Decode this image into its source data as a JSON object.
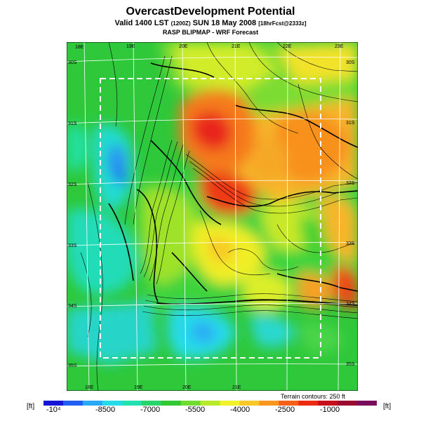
{
  "header": {
    "title": "OvercastDevelopment Potential",
    "subtitle_main": "Valid 1400 LST",
    "subtitle_utc": "(1200Z)",
    "subtitle_date": "SUN 18 May 2008",
    "subtitle_fcst": "[18hrFcst@2333z]",
    "subtitle2": "RASP BLIPMAP - WRF Forecast"
  },
  "map": {
    "lon_top": [
      "18E",
      "19E",
      "20E",
      "21E",
      "22E",
      "23E"
    ],
    "lon_bottom": [
      "18E",
      "19E",
      "20E",
      "21E"
    ],
    "lat_left": [
      "30S",
      "31S",
      "32S",
      "33S",
      "34S",
      "35S"
    ],
    "lat_right": [
      "30S",
      "31S",
      "32S",
      "33S",
      "34S",
      "35S"
    ],
    "terrain_note": "Terrain contours: 250 ft"
  },
  "colorbar": {
    "unit_left": "[ft]",
    "unit_right": "[ft]",
    "labels": [
      "-10⁴",
      "-8500",
      "-7000",
      "-5500",
      "-4000",
      "-2500",
      "-1000"
    ],
    "colors": [
      "#1515d8",
      "#1f5ef0",
      "#2aa8f5",
      "#25dbe8",
      "#22e0b0",
      "#28d56a",
      "#32c832",
      "#6fdc2f",
      "#b8ea2c",
      "#f2f22a",
      "#f8c828",
      "#f9961f",
      "#f56018",
      "#ec2a12",
      "#c8101c",
      "#9a0a30",
      "#7a0a5a"
    ]
  }
}
